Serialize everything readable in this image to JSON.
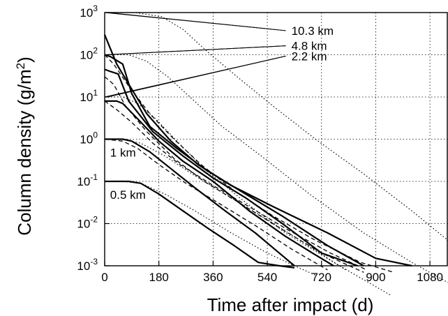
{
  "chart_data": {
    "type": "line",
    "xlabel": "Time after impact (d)",
    "ylabel": "Column density (g/m2)",
    "ylabel_base": "Column density (g/m",
    "ylabel_sup": "2",
    "ylabel_close": ")",
    "xlim": [
      0,
      1140
    ],
    "ylim": [
      0.001,
      1000
    ],
    "yscale": "log",
    "grid": true,
    "xticks": [
      {
        "value": 0,
        "label": "0"
      },
      {
        "value": 180,
        "label": "180"
      },
      {
        "value": 360,
        "label": "360"
      },
      {
        "value": 540,
        "label": "540"
      },
      {
        "value": 720,
        "label": "720"
      },
      {
        "value": 900,
        "label": "900"
      },
      {
        "value": 1080,
        "label": "1080"
      }
    ],
    "yticks": [
      {
        "value": 1000,
        "base": "10",
        "exp": "3"
      },
      {
        "value": 100,
        "base": "10",
        "exp": "2"
      },
      {
        "value": 10,
        "base": "10",
        "exp": "1"
      },
      {
        "value": 1,
        "base": "10",
        "exp": "0"
      },
      {
        "value": 0.1,
        "base": "10",
        "exp": "-1"
      },
      {
        "value": 0.01,
        "base": "10",
        "exp": "-2"
      },
      {
        "value": 0.001,
        "base": "10",
        "exp": "-3"
      }
    ],
    "series": [
      {
        "style": "dotted",
        "x": [
          0,
          100,
          190,
          260,
          340,
          440,
          560,
          700,
          860,
          1020,
          1140
        ],
        "y": [
          1000,
          1000,
          800,
          400,
          120,
          30,
          6,
          1,
          0.15,
          0.02,
          0.004
        ]
      },
      {
        "style": "dotted",
        "x": [
          0,
          80,
          140,
          210,
          290,
          390,
          520,
          680,
          860,
          1020,
          1140
        ],
        "y": [
          100,
          100,
          70,
          30,
          9,
          2,
          0.4,
          0.05,
          0.006,
          0.0012,
          0.0004
        ]
      },
      {
        "style": "dotted",
        "x": [
          0,
          60,
          110,
          170,
          240,
          330,
          450,
          600,
          780,
          950
        ],
        "y": [
          10,
          10,
          7,
          3,
          0.9,
          0.2,
          0.04,
          0.006,
          0.001,
          0.0002
        ]
      },
      {
        "style": "dotted",
        "x": [
          0,
          60,
          120,
          200,
          290,
          400,
          520,
          650,
          800
        ],
        "y": [
          1,
          1,
          0.8,
          0.4,
          0.15,
          0.05,
          0.015,
          0.004,
          0.0008
        ]
      },
      {
        "style": "dotted",
        "x": [
          0,
          60,
          120,
          200,
          300,
          420,
          540,
          630,
          700
        ],
        "y": [
          0.1,
          0.1,
          0.09,
          0.05,
          0.02,
          0.006,
          0.002,
          0.001,
          0.0006
        ]
      },
      {
        "style": "solid",
        "x": [
          0,
          10,
          40,
          80,
          140,
          220,
          310,
          420,
          560,
          740,
          900,
          1020
        ],
        "y": [
          300,
          200,
          60,
          20,
          4,
          0.9,
          0.25,
          0.08,
          0.025,
          0.006,
          0.0015,
          0.001
        ]
      },
      {
        "style": "solid",
        "x": [
          0,
          20,
          60,
          90,
          150,
          240,
          340,
          450,
          590,
          740,
          860
        ],
        "y": [
          100,
          90,
          60,
          12,
          2,
          0.6,
          0.18,
          0.06,
          0.015,
          0.003,
          0.001
        ]
      },
      {
        "style": "solid",
        "x": [
          0,
          20,
          45,
          80,
          160,
          260,
          360,
          470,
          590,
          720,
          840
        ],
        "y": [
          45,
          40,
          35,
          8,
          1.5,
          0.4,
          0.12,
          0.04,
          0.01,
          0.002,
          0.001
        ]
      },
      {
        "style": "solid",
        "x": [
          0,
          40,
          60,
          110,
          180,
          260,
          360,
          480,
          600,
          690,
          760
        ],
        "y": [
          8,
          8,
          7,
          3,
          0.9,
          0.3,
          0.1,
          0.02,
          0.005,
          0.002,
          0.001
        ]
      },
      {
        "style": "solid",
        "x": [
          0,
          60,
          90,
          150,
          220,
          300,
          400,
          500,
          580,
          630
        ],
        "y": [
          1,
          1,
          0.9,
          0.5,
          0.2,
          0.07,
          0.02,
          0.006,
          0.002,
          0.001
        ]
      },
      {
        "style": "solid",
        "x": [
          0,
          80,
          120,
          180,
          260,
          340,
          430,
          510,
          580,
          630
        ],
        "y": [
          0.1,
          0.1,
          0.09,
          0.05,
          0.02,
          0.008,
          0.003,
          0.0012,
          0.001,
          0.0009
        ]
      },
      {
        "style": "dashed",
        "x": [
          0,
          30,
          80,
          150,
          230,
          320,
          430,
          560,
          700,
          850,
          960
        ],
        "y": [
          100,
          60,
          18,
          4,
          1,
          0.25,
          0.06,
          0.015,
          0.004,
          0.0012,
          0.0007
        ]
      },
      {
        "style": "dashed",
        "x": [
          0,
          30,
          70,
          140,
          230,
          330,
          450,
          580,
          720,
          860
        ],
        "y": [
          30,
          20,
          6,
          1.5,
          0.35,
          0.1,
          0.03,
          0.008,
          0.002,
          0.0007
        ]
      },
      {
        "style": "dashed",
        "x": [
          0,
          40,
          90,
          160,
          250,
          360,
          480,
          610,
          750,
          870
        ],
        "y": [
          8,
          5,
          2.5,
          0.8,
          0.25,
          0.08,
          0.025,
          0.007,
          0.002,
          0.0008
        ]
      },
      {
        "style": "dashed",
        "x": [
          0,
          60,
          110,
          180,
          270,
          380,
          500,
          620,
          740
        ],
        "y": [
          1,
          0.9,
          0.6,
          0.25,
          0.09,
          0.03,
          0.009,
          0.0025,
          0.0008
        ]
      }
    ],
    "annotations": [
      {
        "text": "10.3 km",
        "x": 620,
        "y": 320,
        "targets": [
          [
            0,
            1000
          ],
          [
            10,
            1000
          ]
        ]
      },
      {
        "text": "4.8 km",
        "x": 620,
        "y": 140,
        "targets": [
          [
            0,
            100
          ],
          [
            10,
            100
          ]
        ]
      },
      {
        "text": "2.2 km",
        "x": 620,
        "y": 80,
        "targets": [
          [
            0,
            10
          ],
          [
            10,
            10
          ]
        ]
      },
      {
        "text": "1 km",
        "x": 18,
        "y": 0.42,
        "targets": []
      },
      {
        "text": "0.5 km",
        "x": 18,
        "y": 0.042,
        "targets": []
      }
    ]
  }
}
